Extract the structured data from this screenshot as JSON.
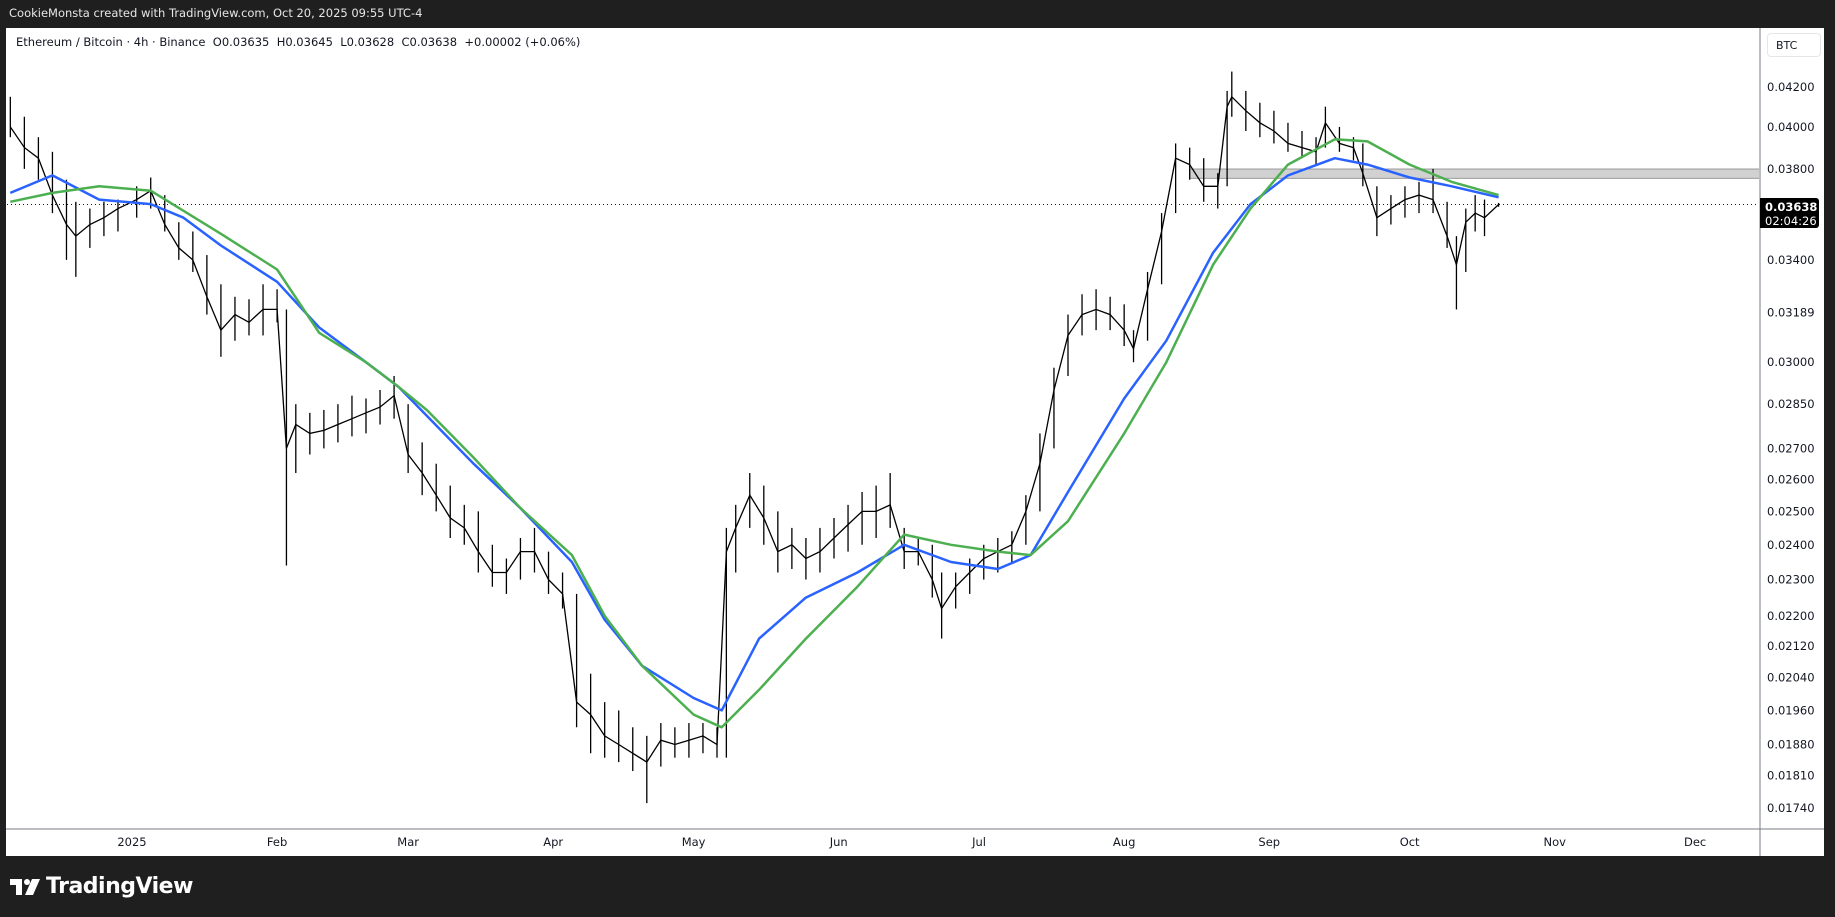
{
  "credit": "CookieMonsta created with TradingView.com, Oct 20, 2025 09:55 UTC-4",
  "legend": {
    "symbol": "Ethereum / Bitcoin · 4h · Binance",
    "open": "O0.03635",
    "high": "H0.03645",
    "low": "L0.03628",
    "close": "C0.03638",
    "change": "+0.00002 (+0.06%)"
  },
  "currency_button": "BTC",
  "last_price": {
    "price": "0.03638",
    "countdown": "02:04:26"
  },
  "logo_text": "TradingView",
  "colors": {
    "price_bars": "#000000",
    "ma_blue": "#2962ff",
    "ma_green": "#4caf50",
    "zone": "#d1d1d1",
    "background": "#1f1f1f"
  },
  "chart_data": {
    "type": "ohlc-bar",
    "title": "Ethereum / Bitcoin · 4h · Binance",
    "yscale": "log",
    "ylim": [
      0.0172,
      0.0436
    ],
    "xlim": [
      "2024-12-06",
      "2025-12-31"
    ],
    "grid": false,
    "y_ticks": [
      "0.04200",
      "0.04000",
      "0.03800",
      "0.03400",
      "0.03189",
      "0.03000",
      "0.02850",
      "0.02700",
      "0.02600",
      "0.02500",
      "0.02400",
      "0.02300",
      "0.02200",
      "0.02120",
      "0.02040",
      "0.01960",
      "0.01880",
      "0.01810",
      "0.01740"
    ],
    "x_ticks": [
      {
        "label": "2025",
        "date": "2025-01-01"
      },
      {
        "label": "Feb",
        "date": "2025-02-01"
      },
      {
        "label": "Mar",
        "date": "2025-03-01"
      },
      {
        "label": "Apr",
        "date": "2025-04-01"
      },
      {
        "label": "May",
        "date": "2025-05-01"
      },
      {
        "label": "Jun",
        "date": "2025-06-01"
      },
      {
        "label": "Jul",
        "date": "2025-07-01"
      },
      {
        "label": "Aug",
        "date": "2025-08-01"
      },
      {
        "label": "Sep",
        "date": "2025-09-01"
      },
      {
        "label": "Oct",
        "date": "2025-10-01"
      },
      {
        "label": "Nov",
        "date": "2025-11-01"
      },
      {
        "label": "Dec",
        "date": "2025-12-01"
      }
    ],
    "bars": [
      [
        "2024-12-06",
        0.0415,
        0.0395,
        0.04
      ],
      [
        "2024-12-09",
        0.0405,
        0.038,
        0.039
      ],
      [
        "2024-12-12",
        0.0395,
        0.0375,
        0.0385
      ],
      [
        "2024-12-15",
        0.0388,
        0.036,
        0.0368
      ],
      [
        "2024-12-18",
        0.0375,
        0.034,
        0.0355
      ],
      [
        "2024-12-20",
        0.0365,
        0.0333,
        0.035
      ],
      [
        "2024-12-23",
        0.0362,
        0.0345,
        0.0355
      ],
      [
        "2024-12-26",
        0.0365,
        0.035,
        0.0358
      ],
      [
        "2024-12-29",
        0.0366,
        0.0352,
        0.0362
      ],
      [
        "2025-01-02",
        0.0372,
        0.0358,
        0.0366
      ],
      [
        "2025-01-05",
        0.0376,
        0.0362,
        0.037
      ],
      [
        "2025-01-08",
        0.0368,
        0.0352,
        0.0355
      ],
      [
        "2025-01-11",
        0.0356,
        0.034,
        0.0345
      ],
      [
        "2025-01-14",
        0.0352,
        0.0335,
        0.034
      ],
      [
        "2025-01-17",
        0.0342,
        0.0318,
        0.0325
      ],
      [
        "2025-01-20",
        0.033,
        0.0302,
        0.0312
      ],
      [
        "2025-01-23",
        0.0325,
        0.0308,
        0.0318
      ],
      [
        "2025-01-26",
        0.0324,
        0.031,
        0.0315
      ],
      [
        "2025-01-29",
        0.033,
        0.031,
        0.032
      ],
      [
        "2025-02-01",
        0.0328,
        0.0315,
        0.032
      ],
      [
        "2025-02-03",
        0.032,
        0.0234,
        0.027
      ],
      [
        "2025-02-05",
        0.0285,
        0.0262,
        0.0278
      ],
      [
        "2025-02-08",
        0.0282,
        0.0268,
        0.0275
      ],
      [
        "2025-02-11",
        0.0283,
        0.027,
        0.0276
      ],
      [
        "2025-02-14",
        0.0285,
        0.0272,
        0.0278
      ],
      [
        "2025-02-17",
        0.0288,
        0.0274,
        0.028
      ],
      [
        "2025-02-20",
        0.0287,
        0.0275,
        0.0282
      ],
      [
        "2025-02-23",
        0.029,
        0.0278,
        0.0284
      ],
      [
        "2025-02-26",
        0.0295,
        0.028,
        0.0288
      ],
      [
        "2025-03-01",
        0.0285,
        0.0262,
        0.0268
      ],
      [
        "2025-03-04",
        0.0272,
        0.0255,
        0.0262
      ],
      [
        "2025-03-07",
        0.0265,
        0.025,
        0.0255
      ],
      [
        "2025-03-10",
        0.0258,
        0.0242,
        0.0248
      ],
      [
        "2025-03-13",
        0.0252,
        0.024,
        0.0245
      ],
      [
        "2025-03-16",
        0.025,
        0.0232,
        0.0238
      ],
      [
        "2025-03-19",
        0.024,
        0.0228,
        0.0232
      ],
      [
        "2025-03-22",
        0.0236,
        0.0226,
        0.0232
      ],
      [
        "2025-03-25",
        0.0242,
        0.023,
        0.0238
      ],
      [
        "2025-03-28",
        0.0245,
        0.0232,
        0.0238
      ],
      [
        "2025-03-31",
        0.0238,
        0.0226,
        0.023
      ],
      [
        "2025-04-03",
        0.0232,
        0.0222,
        0.0226
      ],
      [
        "2025-04-06",
        0.0226,
        0.0192,
        0.0198
      ],
      [
        "2025-04-09",
        0.0205,
        0.0186,
        0.0195
      ],
      [
        "2025-04-12",
        0.0198,
        0.0185,
        0.019
      ],
      [
        "2025-04-15",
        0.0196,
        0.0184,
        0.0188
      ],
      [
        "2025-04-18",
        0.0192,
        0.0182,
        0.0186
      ],
      [
        "2025-04-21",
        0.019,
        0.0175,
        0.0184
      ],
      [
        "2025-04-24",
        0.0193,
        0.0183,
        0.0189
      ],
      [
        "2025-04-27",
        0.0192,
        0.0185,
        0.0188
      ],
      [
        "2025-04-30",
        0.0193,
        0.0185,
        0.0189
      ],
      [
        "2025-05-03",
        0.0193,
        0.0186,
        0.019
      ],
      [
        "2025-05-06",
        0.0192,
        0.0185,
        0.0188
      ],
      [
        "2025-05-08",
        0.0245,
        0.0185,
        0.0238
      ],
      [
        "2025-05-10",
        0.0252,
        0.0232,
        0.0245
      ],
      [
        "2025-05-13",
        0.0262,
        0.0245,
        0.0255
      ],
      [
        "2025-05-16",
        0.0258,
        0.024,
        0.0248
      ],
      [
        "2025-05-19",
        0.025,
        0.0232,
        0.0238
      ],
      [
        "2025-05-22",
        0.0245,
        0.0233,
        0.024
      ],
      [
        "2025-05-25",
        0.0242,
        0.023,
        0.0236
      ],
      [
        "2025-05-28",
        0.0245,
        0.0232,
        0.0238
      ],
      [
        "2025-05-31",
        0.0248,
        0.0236,
        0.0242
      ],
      [
        "2025-06-03",
        0.0252,
        0.0238,
        0.0246
      ],
      [
        "2025-06-06",
        0.0256,
        0.024,
        0.025
      ],
      [
        "2025-06-09",
        0.0258,
        0.0242,
        0.025
      ],
      [
        "2025-06-12",
        0.0262,
        0.0245,
        0.0252
      ],
      [
        "2025-06-15",
        0.0245,
        0.0233,
        0.0238
      ],
      [
        "2025-06-18",
        0.0242,
        0.0234,
        0.0238
      ],
      [
        "2025-06-21",
        0.024,
        0.0225,
        0.023
      ],
      [
        "2025-06-23",
        0.0232,
        0.0214,
        0.0222
      ],
      [
        "2025-06-26",
        0.0232,
        0.0222,
        0.0228
      ],
      [
        "2025-06-29",
        0.0236,
        0.0226,
        0.0232
      ],
      [
        "2025-07-02",
        0.024,
        0.023,
        0.0236
      ],
      [
        "2025-07-05",
        0.0242,
        0.0232,
        0.0238
      ],
      [
        "2025-07-08",
        0.0244,
        0.0235,
        0.024
      ],
      [
        "2025-07-11",
        0.0255,
        0.024,
        0.025
      ],
      [
        "2025-07-14",
        0.0275,
        0.025,
        0.0265
      ],
      [
        "2025-07-17",
        0.0298,
        0.027,
        0.029
      ],
      [
        "2025-07-20",
        0.0318,
        0.0295,
        0.031
      ],
      [
        "2025-07-23",
        0.0326,
        0.031,
        0.0318
      ],
      [
        "2025-07-26",
        0.0328,
        0.0312,
        0.032
      ],
      [
        "2025-07-29",
        0.0325,
        0.0312,
        0.0318
      ],
      [
        "2025-08-01",
        0.0322,
        0.0306,
        0.0312
      ],
      [
        "2025-08-03",
        0.0312,
        0.03,
        0.0305
      ],
      [
        "2025-08-06",
        0.0335,
        0.0308,
        0.0328
      ],
      [
        "2025-08-09",
        0.036,
        0.033,
        0.0352
      ],
      [
        "2025-08-12",
        0.0392,
        0.036,
        0.0385
      ],
      [
        "2025-08-15",
        0.039,
        0.0375,
        0.0382
      ],
      [
        "2025-08-18",
        0.0385,
        0.0365,
        0.0372
      ],
      [
        "2025-08-21",
        0.0378,
        0.0362,
        0.0372
      ],
      [
        "2025-08-23",
        0.0418,
        0.0372,
        0.041
      ],
      [
        "2025-08-24",
        0.0428,
        0.0405,
        0.0415
      ],
      [
        "2025-08-27",
        0.0418,
        0.0398,
        0.0408
      ],
      [
        "2025-08-30",
        0.0412,
        0.0395,
        0.0402
      ],
      [
        "2025-09-02",
        0.0408,
        0.0392,
        0.0398
      ],
      [
        "2025-09-05",
        0.0402,
        0.0388,
        0.0392
      ],
      [
        "2025-09-08",
        0.0398,
        0.0385,
        0.039
      ],
      [
        "2025-09-11",
        0.0395,
        0.0382,
        0.0388
      ],
      [
        "2025-09-13",
        0.041,
        0.039,
        0.0402
      ],
      [
        "2025-09-16",
        0.04,
        0.0388,
        0.0392
      ],
      [
        "2025-09-19",
        0.0395,
        0.0384,
        0.039
      ],
      [
        "2025-09-21",
        0.0392,
        0.0372,
        0.0378
      ],
      [
        "2025-09-24",
        0.0372,
        0.035,
        0.0358
      ],
      [
        "2025-09-27",
        0.0368,
        0.0355,
        0.0362
      ],
      [
        "2025-09-30",
        0.0372,
        0.0358,
        0.0366
      ],
      [
        "2025-10-03",
        0.0374,
        0.036,
        0.0368
      ],
      [
        "2025-10-06",
        0.038,
        0.036,
        0.0366
      ],
      [
        "2025-10-09",
        0.0365,
        0.0345,
        0.035
      ],
      [
        "2025-10-11",
        0.035,
        0.032,
        0.0338
      ],
      [
        "2025-10-13",
        0.0362,
        0.0335,
        0.0356
      ],
      [
        "2025-10-15",
        0.0368,
        0.0352,
        0.036
      ],
      [
        "2025-10-17",
        0.0366,
        0.035,
        0.0358
      ],
      [
        "2025-10-20",
        0.03645,
        0.03628,
        0.03638
      ]
    ],
    "ma_dates": [
      "2024-12-06",
      "2024-12-15",
      "2024-12-25",
      "2025-01-05",
      "2025-01-12",
      "2025-01-20",
      "2025-02-01",
      "2025-02-10",
      "2025-02-20",
      "2025-02-27",
      "2025-03-05",
      "2025-03-15",
      "2025-03-25",
      "2025-04-05",
      "2025-04-12",
      "2025-04-20",
      "2025-05-01",
      "2025-05-07",
      "2025-05-15",
      "2025-05-25",
      "2025-06-05",
      "2025-06-15",
      "2025-06-25",
      "2025-07-05",
      "2025-07-12",
      "2025-07-20",
      "2025-08-01",
      "2025-08-10",
      "2025-08-20",
      "2025-08-28",
      "2025-09-05",
      "2025-09-15",
      "2025-09-22",
      "2025-10-01",
      "2025-10-10",
      "2025-10-20"
    ],
    "series": [
      {
        "color": "#2962ff",
        "values": [
          0.0369,
          0.0377,
          0.0366,
          0.0364,
          0.0358,
          0.0346,
          0.0331,
          0.0313,
          0.03,
          0.0291,
          0.0281,
          0.0265,
          0.0251,
          0.0235,
          0.0219,
          0.0207,
          0.0199,
          0.0196,
          0.0214,
          0.0225,
          0.0232,
          0.024,
          0.0235,
          0.0233,
          0.0237,
          0.0256,
          0.0287,
          0.0308,
          0.0343,
          0.0364,
          0.0377,
          0.0385,
          0.0382,
          0.0376,
          0.0372,
          0.0367
        ]
      },
      {
        "color": "#4caf50",
        "values": [
          0.0365,
          0.0369,
          0.0372,
          0.037,
          0.0361,
          0.0351,
          0.0336,
          0.0311,
          0.03,
          0.0291,
          0.0283,
          0.0267,
          0.0251,
          0.0237,
          0.022,
          0.0207,
          0.0195,
          0.0192,
          0.0201,
          0.0214,
          0.0228,
          0.0243,
          0.024,
          0.0238,
          0.0237,
          0.0247,
          0.0275,
          0.03,
          0.0338,
          0.0362,
          0.0382,
          0.0394,
          0.0393,
          0.0382,
          0.0374,
          0.0368
        ]
      }
    ],
    "zone": {
      "from_date": "2025-08-15",
      "price_top": 0.0379,
      "price_bottom": 0.0377
    },
    "last_close": 0.03638
  }
}
